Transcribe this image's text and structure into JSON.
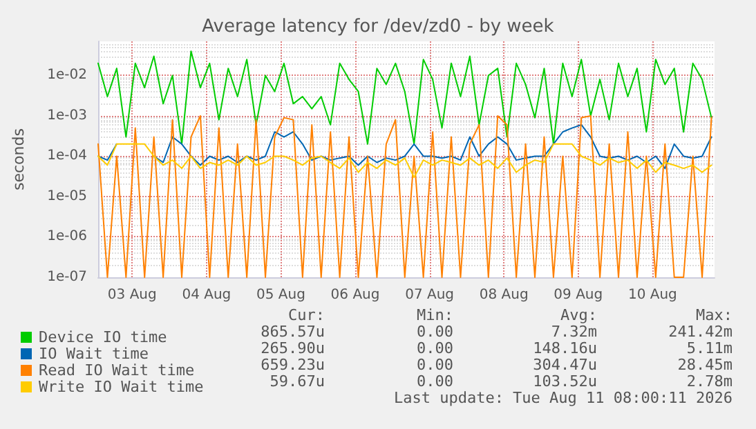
{
  "chart_data": {
    "type": "line",
    "title": "Average latency for /dev/zd0 - by week",
    "ylabel": "seconds",
    "x": [
      "2026-08-03T01:00",
      "2026-08-03T04:00",
      "2026-08-03T07:00",
      "2026-08-03T10:00",
      "2026-08-03T13:00",
      "2026-08-03T16:00",
      "2026-08-03T19:00",
      "2026-08-03T22:00",
      "2026-08-04T01:00",
      "2026-08-04T04:00",
      "2026-08-04T07:00",
      "2026-08-04T10:00",
      "2026-08-04T13:00",
      "2026-08-04T16:00",
      "2026-08-04T19:00",
      "2026-08-04T22:00",
      "2026-08-05T01:00",
      "2026-08-05T04:00",
      "2026-08-05T07:00",
      "2026-08-05T10:00",
      "2026-08-05T13:00",
      "2026-08-05T16:00",
      "2026-08-05T19:00",
      "2026-08-05T22:00",
      "2026-08-06T01:00",
      "2026-08-06T04:00",
      "2026-08-06T07:00",
      "2026-08-06T10:00",
      "2026-08-06T13:00",
      "2026-08-06T16:00",
      "2026-08-06T19:00",
      "2026-08-06T22:00",
      "2026-08-07T01:00",
      "2026-08-07T04:00",
      "2026-08-07T07:00",
      "2026-08-07T10:00",
      "2026-08-07T13:00",
      "2026-08-07T16:00",
      "2026-08-07T19:00",
      "2026-08-07T22:00",
      "2026-08-08T01:00",
      "2026-08-08T04:00",
      "2026-08-08T07:00",
      "2026-08-08T10:00",
      "2026-08-08T13:00",
      "2026-08-08T16:00",
      "2026-08-08T19:00",
      "2026-08-08T22:00",
      "2026-08-09T01:00",
      "2026-08-09T04:00",
      "2026-08-09T07:00",
      "2026-08-09T10:00",
      "2026-08-09T13:00",
      "2026-08-09T16:00",
      "2026-08-09T19:00",
      "2026-08-09T22:00",
      "2026-08-10T01:00",
      "2026-08-10T04:00",
      "2026-08-10T07:00",
      "2026-08-10T10:00",
      "2026-08-10T13:00",
      "2026-08-10T16:00",
      "2026-08-10T19:00",
      "2026-08-10T22:00",
      "2026-08-11T01:00",
      "2026-08-11T04:00",
      "2026-08-11T07:00"
    ],
    "series": [
      {
        "name": "Device IO time",
        "color": "#00cc00",
        "values": [
          0.02,
          0.003,
          0.015,
          0.0003,
          0.02,
          0.005,
          0.03,
          0.002,
          0.01,
          0.0002,
          0.04,
          0.005,
          0.02,
          0.0008,
          0.015,
          0.003,
          0.025,
          0.0006,
          0.01,
          0.004,
          0.02,
          0.002,
          0.003,
          0.0015,
          0.003,
          0.0006,
          0.02,
          0.008,
          0.004,
          0.0002,
          0.015,
          0.006,
          0.02,
          0.004,
          0.0002,
          0.025,
          0.008,
          0.0005,
          0.02,
          0.003,
          0.03,
          0.0006,
          0.01,
          0.015,
          0.0003,
          0.02,
          0.006,
          0.0009,
          0.015,
          0.0002,
          0.02,
          0.003,
          0.025,
          0.001,
          0.008,
          0.0008,
          0.02,
          0.003,
          0.015,
          0.0004,
          0.025,
          0.006,
          0.015,
          0.0004,
          0.02,
          0.008,
          0.0009
        ]
      },
      {
        "name": "IO Wait time",
        "color": "#0066b3",
        "values": [
          0.0001,
          8e-05,
          0.0002,
          null,
          null,
          null,
          0.0001,
          7e-05,
          0.0003,
          0.0002,
          0.0001,
          6e-05,
          0.0001,
          8e-05,
          0.0001,
          7e-05,
          0.0001,
          8e-05,
          0.0001,
          0.0004,
          0.0003,
          0.0004,
          0.0002,
          8e-05,
          0.0001,
          8e-05,
          9e-05,
          0.0001,
          6e-05,
          0.0001,
          7e-05,
          9e-05,
          8e-05,
          0.0001,
          0.0002,
          0.0001,
          0.0001,
          9e-05,
          0.0001,
          8e-05,
          0.0003,
          0.0001,
          0.0002,
          0.0003,
          0.0002,
          8e-05,
          9e-05,
          0.0001,
          0.0001,
          0.0002,
          0.0004,
          0.0005,
          0.0006,
          0.0003,
          0.0001,
          9e-05,
          0.0001,
          8e-05,
          0.0001,
          7e-05,
          0.0001,
          5e-05,
          0.0002,
          0.0001,
          9e-05,
          0.0001,
          0.0003
        ]
      },
      {
        "name": "Read IO Wait time",
        "color": "#ff8000",
        "values": [
          0.0002,
          1e-07,
          0.0001,
          1e-07,
          0.0005,
          1e-07,
          0.0003,
          1e-07,
          0.0008,
          1e-07,
          0.0003,
          0.001,
          1e-07,
          0.0005,
          1e-07,
          0.0002,
          1e-07,
          0.0008,
          1e-07,
          0.0003,
          0.0009,
          0.0008,
          1e-07,
          0.0006,
          1e-07,
          0.0004,
          1e-07,
          0.0003,
          1e-07,
          0.0001,
          1e-07,
          0.0002,
          0.0008,
          1e-07,
          0.0001,
          1e-07,
          0.0004,
          1e-07,
          0.0003,
          1e-07,
          0.0002,
          0.0006,
          1e-07,
          0.001,
          0.0006,
          1e-07,
          0.0002,
          1e-07,
          0.0003,
          1e-07,
          0.0001,
          1e-07,
          0.0009,
          0.001,
          1e-07,
          0.0002,
          1e-07,
          0.0004,
          1e-07,
          0.0001,
          1e-07,
          0.0002,
          1e-07,
          1e-07,
          0.0001,
          1e-07,
          0.0009
        ]
      },
      {
        "name": "Write IO Wait time",
        "color": "#ffcc00",
        "values": [
          0.0001,
          6e-05,
          0.0002,
          0.0002,
          0.0002,
          0.0002,
          0.0001,
          6e-05,
          8e-05,
          5e-05,
          0.0001,
          5e-05,
          7e-05,
          6e-05,
          8e-05,
          6e-05,
          0.0001,
          6e-05,
          7e-05,
          0.0001,
          0.0001,
          8e-05,
          6e-05,
          9e-05,
          0.0001,
          7e-05,
          5e-05,
          9e-05,
          4e-05,
          7e-05,
          5e-05,
          8e-05,
          6e-05,
          9e-05,
          3e-05,
          8e-05,
          6e-05,
          8e-05,
          7e-05,
          6e-05,
          9e-05,
          6e-05,
          8e-05,
          5e-05,
          9e-05,
          4e-05,
          6e-05,
          8e-05,
          7e-05,
          0.0002,
          0.0002,
          0.0002,
          0.0001,
          8e-05,
          6e-05,
          9e-05,
          7e-05,
          8e-05,
          5e-05,
          8e-05,
          4e-05,
          7e-05,
          6e-05,
          5e-05,
          6e-05,
          4e-05,
          6e-05
        ]
      }
    ],
    "xlim": [
      "2026-08-03T01:00",
      "2026-08-11T08:00"
    ],
    "xticks": [
      {
        "value": "2026-08-03T12:00",
        "label": "03 Aug"
      },
      {
        "value": "2026-08-04T12:00",
        "label": "04 Aug"
      },
      {
        "value": "2026-08-05T12:00",
        "label": "05 Aug"
      },
      {
        "value": "2026-08-06T12:00",
        "label": "06 Aug"
      },
      {
        "value": "2026-08-07T12:00",
        "label": "07 Aug"
      },
      {
        "value": "2026-08-08T12:00",
        "label": "08 Aug"
      },
      {
        "value": "2026-08-09T12:00",
        "label": "09 Aug"
      },
      {
        "value": "2026-08-10T12:00",
        "label": "10 Aug"
      }
    ],
    "ylim": [
      1e-07,
      0.07
    ],
    "yticks": [
      {
        "value": 1e-07,
        "label": "1e-07"
      },
      {
        "value": 1e-06,
        "label": "1e-06"
      },
      {
        "value": 1e-05,
        "label": "1e-05"
      },
      {
        "value": 0.0001,
        "label": "1e-04"
      },
      {
        "value": 0.001,
        "label": "1e-03"
      },
      {
        "value": 0.01,
        "label": "1e-02"
      }
    ],
    "log": "y",
    "grid": true,
    "legend": "bottom",
    "marker": "none",
    "line_style": "solid",
    "annotations": [
      "Cur:",
      "Min:",
      "Avg:",
      "Max:",
      "865.57u",
      "0.00",
      "7.32m",
      "241.42m",
      "265.90u",
      "0.00",
      "148.16u",
      "5.11m",
      "659.23u",
      "0.00",
      "304.47u",
      "28.45m",
      "59.67u",
      "0.00",
      "103.52u",
      "2.78m",
      "Last update: Tue Aug 11 08:00:11 2026"
    ]
  }
}
